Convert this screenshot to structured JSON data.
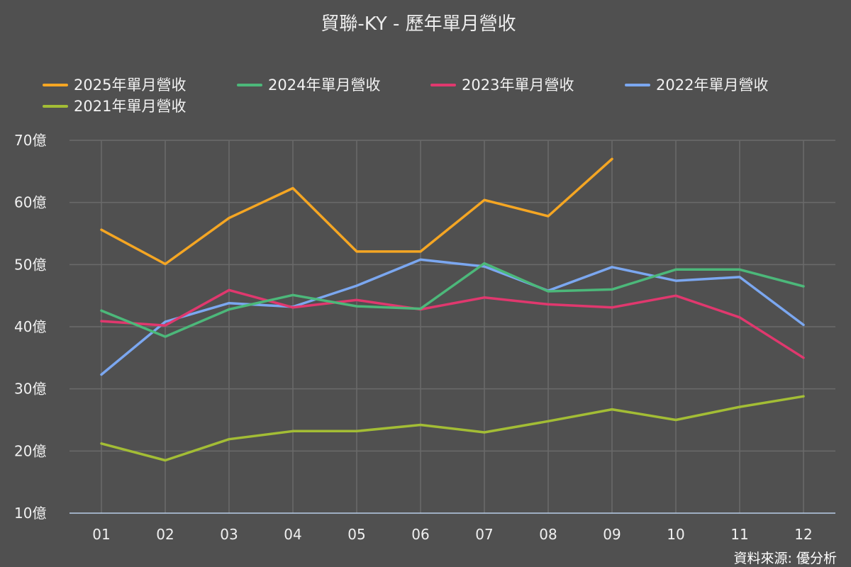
{
  "chart_data": {
    "type": "line",
    "title": "貿聯-KY - 歷年單月營收",
    "categories": [
      "01",
      "02",
      "03",
      "04",
      "05",
      "06",
      "07",
      "08",
      "09",
      "10",
      "11",
      "12"
    ],
    "y_unit_suffix": "億",
    "ylim": [
      10,
      70
    ],
    "yticks": [
      10,
      20,
      30,
      40,
      50,
      60,
      70
    ],
    "ytick_labels": [
      "10億",
      "20億",
      "30億",
      "40億",
      "50億",
      "60億",
      "70億"
    ],
    "grid": true,
    "legend_position": "top",
    "series": [
      {
        "name": "2025年單月營收",
        "color": "#f5a623",
        "values": [
          55.6,
          50.1,
          57.5,
          62.3,
          52.1,
          52.1,
          60.4,
          57.8,
          67.0,
          null,
          null,
          null
        ]
      },
      {
        "name": "2024年單月營收",
        "color": "#4cb87a",
        "values": [
          42.6,
          38.4,
          42.8,
          45.1,
          43.3,
          42.9,
          50.2,
          45.7,
          46.0,
          49.2,
          49.2,
          46.5
        ]
      },
      {
        "name": "2023年單月營收",
        "color": "#e0386e",
        "values": [
          40.9,
          40.2,
          45.9,
          43.1,
          44.3,
          42.8,
          44.7,
          43.6,
          43.1,
          45.0,
          41.5,
          35.0
        ]
      },
      {
        "name": "2022年單月營收",
        "color": "#7ba7f0",
        "values": [
          32.3,
          40.8,
          43.8,
          43.2,
          46.6,
          50.8,
          49.7,
          45.8,
          49.6,
          47.4,
          48.0,
          40.3
        ]
      },
      {
        "name": "2021年單月營收",
        "color": "#a3bd35",
        "values": [
          21.2,
          18.5,
          21.9,
          23.2,
          23.2,
          24.2,
          23.0,
          24.8,
          26.7,
          25.0,
          27.1,
          28.8
        ]
      }
    ],
    "source_label": "資料來源: 優分析"
  },
  "colors": {
    "background": "#505050",
    "grid": "#6a6a6a",
    "axis": "#b8cde8"
  }
}
